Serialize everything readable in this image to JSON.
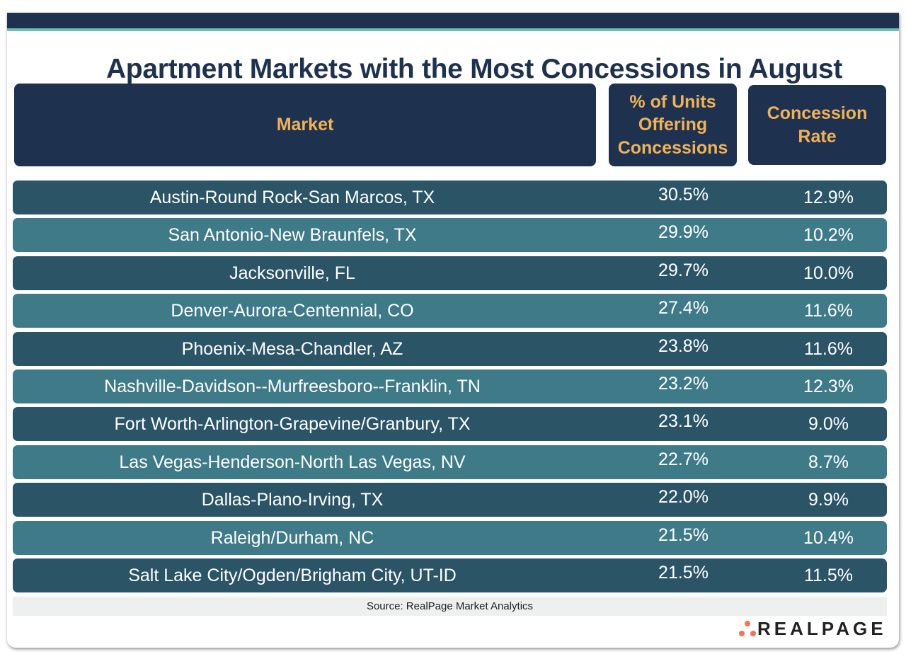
{
  "title": "Apartment Markets with the Most Concessions in August",
  "colors": {
    "navy": "#1e3250",
    "accent_line": "#6dbfad",
    "header_text": "#f0b257",
    "row_dark": "#2b5467",
    "row_light": "#3f7a88",
    "logo_dots": "#ee7654"
  },
  "chart_data": {
    "type": "table",
    "columns": [
      "Market",
      "% of Units Offering Concessions",
      "Concession Rate"
    ],
    "rows": [
      [
        "Austin-Round Rock-San Marcos, TX",
        "30.5%",
        "12.9%"
      ],
      [
        "San Antonio-New Braunfels, TX",
        "29.9%",
        "10.2%"
      ],
      [
        "Jacksonville, FL",
        "29.7%",
        "10.0%"
      ],
      [
        "Denver-Aurora-Centennial, CO",
        "27.4%",
        "11.6%"
      ],
      [
        "Phoenix-Mesa-Chandler, AZ",
        "23.8%",
        "11.6%"
      ],
      [
        "Nashville-Davidson--Murfreesboro--Franklin, TN",
        "23.2%",
        "12.3%"
      ],
      [
        "Fort Worth-Arlington-Grapevine/Granbury, TX",
        "23.1%",
        "9.0%"
      ],
      [
        "Las Vegas-Henderson-North Las Vegas, NV",
        "22.7%",
        "8.7%"
      ],
      [
        "Dallas-Plano-Irving, TX",
        "22.0%",
        "9.9%"
      ],
      [
        "Raleigh/Durham, NC",
        "21.5%",
        "10.4%"
      ],
      [
        "Salt Lake City/Ogden/Brigham City, UT-ID",
        "21.5%",
        "11.5%"
      ]
    ]
  },
  "source": "Source: RealPage Market Analytics",
  "logo": "REALPAGE"
}
